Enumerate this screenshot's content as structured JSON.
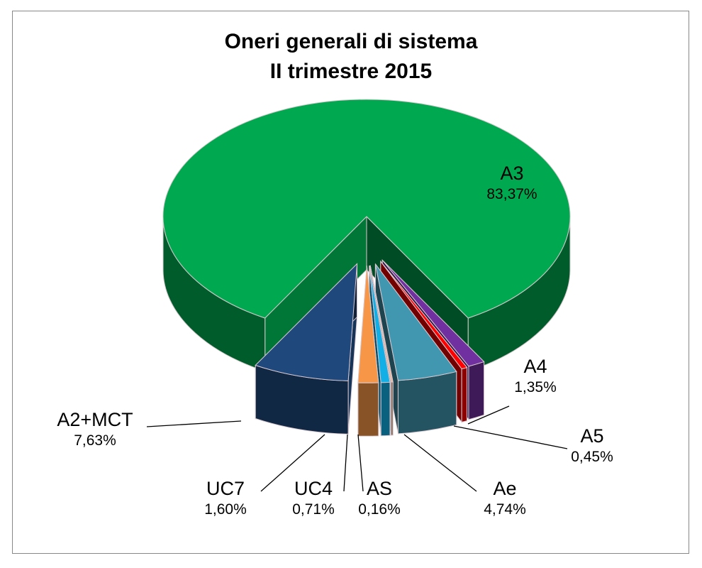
{
  "chart_data": {
    "type": "pie",
    "style": "3d-exploded",
    "title": "Oneri generali di sistema",
    "subtitle": "II trimestre 2015",
    "legend": "none",
    "slices": [
      {
        "label": "A4",
        "value": 1.35,
        "value_label": "1,35%",
        "color": "#7030a0"
      },
      {
        "label": "A5",
        "value": 0.45,
        "value_label": "0,45%",
        "color": "#ff0000"
      },
      {
        "label": "Ae",
        "value": 4.74,
        "value_label": "4,74%",
        "color": "#4197b0"
      },
      {
        "label": "AS",
        "value": 0.16,
        "value_label": "0,16%",
        "color": "#e6b9a0"
      },
      {
        "label": "UC4",
        "value": 0.71,
        "value_label": "0,71%",
        "color": "#12aee6"
      },
      {
        "label": "UC7",
        "value": 1.6,
        "value_label": "1,60%",
        "color": "#f79646"
      },
      {
        "label": "A2+MCT",
        "value": 7.63,
        "value_label": "7,63%",
        "color": "#1f497d"
      },
      {
        "label": "A3",
        "value": 83.37,
        "value_label": "83,37%",
        "color": "#00a94f"
      }
    ]
  }
}
